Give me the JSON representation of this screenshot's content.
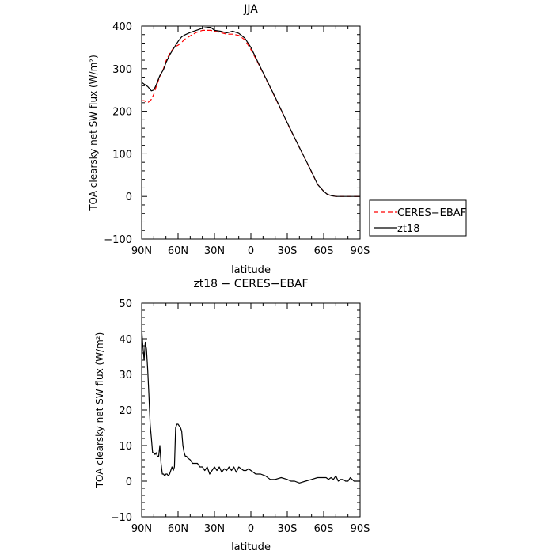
{
  "chart_data": [
    {
      "type": "line",
      "title": "JJA",
      "xlabel": "latitude",
      "ylabel": "TOA clearsky net SW flux (W/m²)",
      "xlim": [
        90,
        -90
      ],
      "ylim": [
        -100,
        400
      ],
      "xticks": [
        90,
        60,
        30,
        0,
        -30,
        -60,
        -90
      ],
      "xtick_labels": [
        "90N",
        "60N",
        "30N",
        "0",
        "30S",
        "60S",
        "90S"
      ],
      "yticks": [
        -100,
        0,
        100,
        200,
        300,
        400
      ],
      "ytick_labels": [
        "−100",
        "0",
        "100",
        "200",
        "300",
        "400"
      ],
      "legend": {
        "placement": "outside-right",
        "entries": [
          "CERES−EBAF",
          "zt18"
        ]
      },
      "series": [
        {
          "name": "CERES−EBAF",
          "color": "#ff0000",
          "dash": "dashed",
          "x": [
            90,
            88,
            85,
            82,
            80,
            78,
            75,
            72,
            70,
            67,
            64,
            62,
            60,
            57,
            54,
            50,
            45,
            40,
            35,
            33,
            30,
            25,
            20,
            15,
            10,
            5,
            0,
            -5,
            -10,
            -20,
            -30,
            -40,
            -50,
            -55,
            -60,
            -63,
            -66,
            -70,
            -75,
            -80,
            -85,
            -90
          ],
          "y": [
            225,
            225,
            220,
            228,
            240,
            258,
            282,
            300,
            318,
            335,
            348,
            352,
            355,
            362,
            370,
            377,
            385,
            390,
            390,
            390,
            388,
            385,
            381,
            381,
            378,
            368,
            345,
            318,
            290,
            232,
            172,
            115,
            57,
            28,
            12,
            5,
            2,
            0,
            0,
            0,
            0,
            0
          ]
        },
        {
          "name": "zt18",
          "color": "#000000",
          "dash": "solid",
          "x": [
            90,
            88,
            85,
            82,
            80,
            78,
            75,
            72,
            70,
            67,
            64,
            62,
            60,
            57,
            54,
            50,
            45,
            40,
            35,
            33,
            30,
            25,
            20,
            15,
            10,
            5,
            0,
            -5,
            -10,
            -20,
            -30,
            -40,
            -50,
            -55,
            -60,
            -63,
            -66,
            -70,
            -75,
            -80,
            -85,
            -90
          ],
          "y": [
            268,
            264,
            258,
            248,
            250,
            262,
            284,
            298,
            314,
            332,
            346,
            355,
            364,
            375,
            380,
            385,
            390,
            395,
            397,
            397,
            390,
            388,
            384,
            388,
            383,
            372,
            350,
            320,
            291,
            233,
            173,
            115,
            58,
            28,
            12,
            5,
            2,
            0,
            0,
            0,
            0,
            0
          ]
        }
      ]
    },
    {
      "type": "line",
      "title": "zt18 − CERES−EBAF",
      "xlabel": "latitude",
      "ylabel": "TOA clearsky net SW flux (W/m²)",
      "xlim": [
        90,
        -90
      ],
      "ylim": [
        -10,
        50
      ],
      "xticks": [
        90,
        60,
        30,
        0,
        -30,
        -60,
        -90
      ],
      "xtick_labels": [
        "90N",
        "60N",
        "30N",
        "0",
        "30S",
        "60S",
        "90S"
      ],
      "yticks": [
        -10,
        0,
        10,
        20,
        30,
        40,
        50
      ],
      "ytick_labels": [
        "−10",
        "0",
        "10",
        "20",
        "30",
        "40",
        "50"
      ],
      "series": [
        {
          "name": "zt18",
          "color": "#000000",
          "dash": "solid",
          "x": [
            90,
            89,
            88,
            87,
            86,
            85,
            84,
            83,
            82,
            81,
            80,
            79,
            78,
            77,
            76,
            75,
            74,
            73,
            72,
            71,
            70,
            69,
            68,
            67,
            66,
            65,
            64,
            63,
            62,
            61,
            60,
            59,
            58,
            57,
            56,
            55,
            54,
            53,
            52,
            50,
            48,
            46,
            44,
            42,
            40,
            38,
            36,
            34,
            32,
            30,
            28,
            26,
            24,
            22,
            20,
            18,
            16,
            14,
            12,
            10,
            8,
            6,
            4,
            2,
            0,
            -4,
            -8,
            -12,
            -16,
            -20,
            -25,
            -30,
            -33,
            -36,
            -40,
            -45,
            -50,
            -55,
            -58,
            -60,
            -62,
            -64,
            -66,
            -68,
            -70,
            -72,
            -74,
            -76,
            -78,
            -80,
            -82,
            -85,
            -90
          ],
          "y": [
            43,
            38,
            34,
            39,
            37,
            31,
            24,
            16,
            12,
            8,
            8,
            7.5,
            8,
            7,
            7,
            10,
            5,
            2,
            2,
            1.5,
            2,
            2,
            1.5,
            2,
            3,
            4,
            3,
            4,
            15,
            16,
            16,
            15.5,
            15,
            14,
            10,
            8,
            7,
            7,
            6.5,
            6,
            5,
            5,
            5,
            4,
            4,
            3,
            4,
            2,
            3,
            4,
            3,
            4,
            2.5,
            3.5,
            3,
            4,
            3,
            4,
            2.5,
            4,
            3.5,
            3,
            3,
            3.5,
            3,
            2,
            2,
            1.5,
            0.5,
            0.5,
            1,
            0.5,
            0,
            0,
            -0.5,
            0,
            0.5,
            1,
            1,
            1,
            1,
            0.5,
            1,
            0.5,
            1.5,
            0,
            0.5,
            0.5,
            0,
            0,
            1,
            0,
            0
          ]
        }
      ]
    }
  ]
}
